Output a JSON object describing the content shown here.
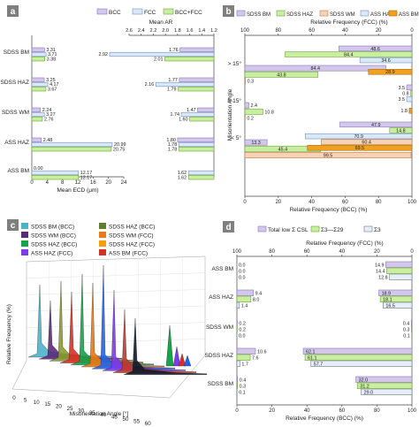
{
  "colors": {
    "bcc": "#d3c7ea",
    "bcc_stroke": "#8c74c0",
    "fcc": "#dbe9f7",
    "fcc_stroke": "#6d8fbf",
    "mix": "#c8ef9e",
    "mix_stroke": "#6ea23a",
    "wm": "#f6d3b5",
    "wm_stroke": "#c87b42",
    "haz_fcc": "#6fa8dc",
    "ass_bm": "#f2a11f",
    "ass_bm_stroke": "#a7690a",
    "sigma3": "#e7eef7",
    "sigma3_stroke": "#6c7a89",
    "panel_label_bg": "#7f7f7f"
  },
  "panels": {
    "a": "a",
    "b": "b",
    "c": "c",
    "d": "d"
  },
  "chart_data": [
    {
      "panel": "a",
      "type": "bar",
      "orientation": "horizontal",
      "legend": [
        "BCC",
        "FCC",
        "BCC+FCC"
      ],
      "legend_placement": "top",
      "categories": [
        "SDSS BM",
        "SDSS HAZ",
        "SDSS WM",
        "ASS HAZ",
        "ASS BM"
      ],
      "left": {
        "xlabel": "Mean ECD (μm)",
        "xlim": [
          0,
          24
        ],
        "ticks": [
          "0",
          "4",
          "8",
          "12",
          "16",
          "20",
          "24"
        ],
        "series": [
          {
            "name": "BCC",
            "values": [
              3.31,
              3.25,
              2.24,
              2.48,
              0.0
            ],
            "labels": [
              "3.31",
              "3.25",
              "2.24",
              "2.48",
              "0.00"
            ]
          },
          {
            "name": "FCC",
            "values": [
              3.71,
              4.17,
              3.27,
              20.99,
              12.17
            ],
            "labels": [
              "3.71",
              "4.17",
              "3.27",
              "20.99",
              "12.17"
            ]
          },
          {
            "name": "BCC+FCC",
            "values": [
              3.38,
              3.67,
              2.76,
              20.75,
              12.17
            ],
            "labels": [
              "3.38",
              "3.67",
              "2.76",
              "20.75",
              "12.17"
            ]
          }
        ]
      },
      "right": {
        "xlabel": "Mean AR",
        "xlim": [
          2.6,
          1.2
        ],
        "ticks": [
          "2.6",
          "2.4",
          "2.2",
          "2.0",
          "1.8",
          "1.6",
          "1.4",
          "1.2"
        ],
        "series": [
          {
            "name": "BCC",
            "values": [
              1.76,
              1.77,
              1.47,
              1.8,
              null
            ],
            "labels": [
              "1.76",
              "1.77",
              "1.47",
              "1.80",
              ""
            ]
          },
          {
            "name": "FCC",
            "values": [
              2.92,
              2.16,
              1.74,
              1.78,
              1.62
            ],
            "labels": [
              "2.92",
              "2.16",
              "1.74",
              "1.78",
              "1.62"
            ]
          },
          {
            "name": "BCC+FCC",
            "values": [
              2.01,
              1.79,
              1.6,
              1.78,
              1.62
            ],
            "labels": [
              "2.01",
              "1.79",
              "1.60",
              "1.78",
              "1.62"
            ]
          }
        ]
      }
    },
    {
      "panel": "b",
      "type": "bar",
      "orientation": "horizontal",
      "legend": [
        "SDSS BM",
        "SDSS HAZ",
        "SDSS WM",
        "ASS HAZ",
        "ASS BM"
      ],
      "legend_placement": "top",
      "ylabel": "Misorientation Angle",
      "categories": [
        "> 15°",
        "5-15°",
        "< 5°"
      ],
      "bottom_axis": {
        "xlabel": "Relative Frequency (BCC) (%)",
        "xlim": [
          0,
          100
        ],
        "ticks": [
          "0",
          "20",
          "40",
          "60",
          "80",
          "100"
        ]
      },
      "top_axis": {
        "xlabel": "Relative Frequency (FCC) (%)",
        "xlim": [
          100,
          0
        ],
        "ticks": [
          "100",
          "80",
          "60",
          "40",
          "20",
          "0"
        ]
      },
      "bcc_series": [
        {
          "name": "SDSS BM",
          "values": [
            84.4,
            2.4,
            13.3
          ],
          "labels": [
            "84.4",
            "2.4",
            "13.3"
          ]
        },
        {
          "name": "SDSS HAZ",
          "values": [
            43.8,
            10.8,
            45.4
          ],
          "labels": [
            "43.8",
            "10.8",
            "45.4"
          ]
        },
        {
          "name": "SDSS WM",
          "values": [
            0.3,
            0.2,
            99.5
          ],
          "labels": [
            "0.3",
            "0.2",
            "99.5"
          ]
        }
      ],
      "fcc_series": [
        {
          "name": "SDSS BM",
          "values": [
            48.6,
            3.5,
            47.9
          ],
          "labels": [
            "48.6",
            "3.5",
            "47.9"
          ]
        },
        {
          "name": "SDSS HAZ",
          "values": [
            84.4,
            0.8,
            14.8
          ],
          "labels": [
            "84.4",
            "0.8",
            "14.8"
          ]
        },
        {
          "name": "SDSS WM",
          "values": [
            34.6,
            3.5,
            70.9
          ],
          "labels": [
            "34.6",
            "3.5",
            "70.9"
          ]
        },
        {
          "name": "ASS HAZ",
          "values": [
            0.0,
            0.0,
            60.4
          ],
          "labels": [
            "",
            "",
            "60.4"
          ]
        },
        {
          "name": "ASS BM",
          "values": [
            28.9,
            1.8,
            69.5
          ],
          "labels": [
            "28.9",
            "1.8",
            "69.5"
          ]
        }
      ]
    },
    {
      "panel": "c",
      "type": "line",
      "projection": "3d-waterfall",
      "legend": [
        "SDSS BM (BCC)",
        "SDSS HAZ (BCC)",
        "SDSS WM (BCC)",
        "SDSS WM (FCC)",
        "SDSS HAZ (FCC)",
        "ASS HAZ (FCC)",
        "ASS BM (FCC)",
        "ASS HAZ (FCC)"
      ],
      "legend_display": [
        [
          "SDSS BM (BCC)",
          "SDSS HAZ (BCC)"
        ],
        [
          "SDSS WM (BCC)",
          "SDSS WM (FCC)"
        ],
        [
          "SDSS HAZ (BCC)",
          "SDSS HAZ (FCC)"
        ],
        [
          "ASS HAZ (FCC)",
          "ASS BM (FCC)"
        ]
      ],
      "xlabel": "Misorientation Angle [°]",
      "ylabel": "Relative Frequency (%)",
      "x_ticks": [
        "0",
        "5",
        "10",
        "15",
        "20",
        "25",
        "30",
        "35",
        "40",
        "45",
        "50",
        "55",
        "60"
      ],
      "series_colors": [
        "#4bb3c9",
        "#5b2a7a",
        "#8a9b2f",
        "#d93025",
        "#16a34a",
        "#ea7a12",
        "#2563eb",
        "#7c3aed",
        "#c0392b",
        "#111827"
      ]
    },
    {
      "panel": "d",
      "type": "bar",
      "orientation": "horizontal",
      "legend": [
        "Total low Σ CSL",
        "Σ3—Σ29",
        "Σ3"
      ],
      "legend_placement": "top",
      "categories": [
        "ASS BM",
        "ASS HAZ",
        "SDSS WM",
        "SDSS HAZ",
        "SDSS BM"
      ],
      "bottom_axis": {
        "xlabel": "Relative Frequency (BCC) (%)",
        "xlim": [
          0,
          100
        ],
        "ticks": [
          "0",
          "20",
          "40",
          "60",
          "80",
          "100"
        ]
      },
      "top_axis": {
        "xlabel": "Relative Frequency (FCC) (%)",
        "xlim": [
          100,
          0
        ],
        "ticks": [
          "100",
          "80",
          "60",
          "40",
          "20",
          "0"
        ]
      },
      "bcc_series": [
        {
          "name": "Total low Σ CSL",
          "values": [
            0.0,
            9.4,
            0.2,
            10.6,
            0.4
          ],
          "labels": [
            "0.0",
            "9.4",
            "0.2",
            "10.6",
            "0.4"
          ]
        },
        {
          "name": "Σ3—Σ29",
          "values": [
            0.0,
            8.0,
            0.2,
            7.6,
            0.3
          ],
          "labels": [
            "0.0",
            "8.0",
            "0.2",
            "7.6",
            "0.3"
          ]
        },
        {
          "name": "Σ3",
          "values": [
            0.0,
            1.4,
            0.0,
            1.7,
            0.1
          ],
          "labels": [
            "0.0",
            "1.4",
            "0.0",
            "1.7",
            "0.1"
          ]
        }
      ],
      "fcc_series": [
        {
          "name": "Total low Σ CSL",
          "values": [
            14.9,
            18.9,
            0.4,
            62.1,
            32.0
          ],
          "labels": [
            "14.9",
            "18.9",
            "0.4",
            "62.1",
            "32.0"
          ]
        },
        {
          "name": "Σ3—Σ29",
          "values": [
            14.4,
            18.1,
            0.3,
            61.1,
            31.2
          ],
          "labels": [
            "14.4",
            "18.1",
            "0.3",
            "61.1",
            "31.2"
          ]
        },
        {
          "name": "Σ3",
          "values": [
            12.8,
            16.5,
            0.1,
            57.7,
            29.0
          ],
          "labels": [
            "12.8",
            "16.5",
            "0.1",
            "57.7",
            "29.0"
          ]
        }
      ]
    }
  ]
}
